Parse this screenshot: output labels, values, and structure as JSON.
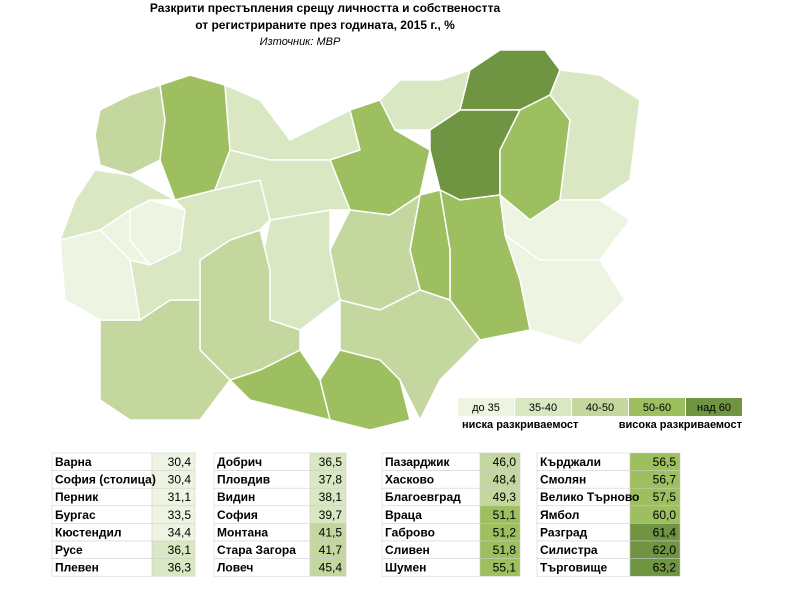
{
  "header": {
    "title_line1": "Разкрити престъпления срещу личността и собствеността",
    "title_line2": "от регистрираните през годината, 2015 г., %",
    "source": "Източник: МВР"
  },
  "legend": {
    "items": [
      {
        "label": "до 35",
        "color": "#eef4e2"
      },
      {
        "label": "35-40",
        "color": "#d9e7c2"
      },
      {
        "label": "40-50",
        "color": "#c3d79f"
      },
      {
        "label": "50-60",
        "color": "#9dbf5f"
      },
      {
        "label": "над 60",
        "color": "#6f9442"
      }
    ],
    "low": "ниска разкриваемост",
    "high": "висока разкриваемост"
  },
  "table": {
    "columns": [
      [
        [
          "Варна",
          "30,4"
        ],
        [
          "София (столица)",
          "30,4"
        ],
        [
          "Перник",
          "31,1"
        ],
        [
          "Бургас",
          "33,5"
        ],
        [
          "Кюстендил",
          "34,4"
        ],
        [
          "Русе",
          "36,1"
        ],
        [
          "Плевен",
          "36,3"
        ]
      ],
      [
        [
          "Добрич",
          "36,5"
        ],
        [
          "Пловдив",
          "37,8"
        ],
        [
          "Видин",
          "38,1"
        ],
        [
          "София",
          "39,7"
        ],
        [
          "Монтана",
          "41,5"
        ],
        [
          "Стара Загора",
          "41,7"
        ],
        [
          "Ловеч",
          "45,4"
        ]
      ],
      [
        [
          "Пазарджик",
          "46,0"
        ],
        [
          "Хасково",
          "48,4"
        ],
        [
          "Благоевград",
          "49,3"
        ],
        [
          "Враца",
          "51,1"
        ],
        [
          "Габрово",
          "51,2"
        ],
        [
          "Сливен",
          "51,8"
        ],
        [
          "Шумен",
          "55,1"
        ]
      ],
      [
        [
          "Кърджали",
          "56,5"
        ],
        [
          "Смолян",
          "56,7"
        ],
        [
          "Велико Търново",
          "57,5"
        ],
        [
          "Ямбол",
          "60,0"
        ],
        [
          "Разград",
          "61,4"
        ],
        [
          "Силистра",
          "62,0"
        ],
        [
          "Търговище",
          "63,2"
        ]
      ]
    ]
  }
}
